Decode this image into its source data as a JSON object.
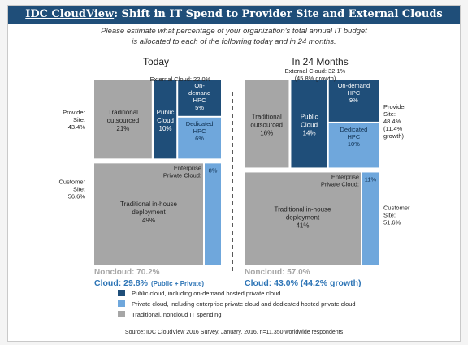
{
  "title": {
    "brand": "IDC CloudView",
    "rest": ": Shift in IT Spend to Provider Site and External Clouds"
  },
  "subtitle": [
    "Please estimate what percentage of your organization's total annual IT budget",
    "is allocated to each of the following today and in 24 months."
  ],
  "colors": {
    "title_bar": "#1f4e79",
    "public_cloud": "#1f4e79",
    "private_cloud": "#6fa7dc",
    "noncloud": "#a6a6a6"
  },
  "chart_data": [
    {
      "type": "mosaic",
      "title": "Today",
      "units": "% of IT budget",
      "provider_site": {
        "label": [
          "Provider",
          "Site:",
          "43.4%"
        ],
        "share": 43.4
      },
      "customer_site": {
        "label": [
          "Customer",
          "Site:",
          "56.6%"
        ],
        "share": 56.6
      },
      "external_cloud_label": [
        "External Cloud: 22.0%"
      ],
      "enterprise_private_label": [
        "Enterprise",
        "Private Cloud:"
      ],
      "segments": [
        {
          "site": "Provider",
          "category": "Traditional",
          "label": [
            "Traditional",
            "outsourced",
            "21%"
          ],
          "value": 21
        },
        {
          "site": "Provider",
          "category": "Public",
          "label": [
            "Public",
            "Cloud",
            "10%"
          ],
          "value": 10
        },
        {
          "site": "Provider",
          "category": "Public",
          "label": [
            "On-",
            "demand",
            "HPC",
            "5%"
          ],
          "value": 5
        },
        {
          "site": "Provider",
          "category": "Private",
          "label": [
            "Dedicated",
            "HPC",
            "6%"
          ],
          "value": 6
        },
        {
          "site": "Customer",
          "category": "Traditional",
          "label": [
            "Traditional in-house",
            "deployment",
            "49%"
          ],
          "value": 49
        },
        {
          "site": "Customer",
          "category": "Private",
          "label": [
            "8%"
          ],
          "value": 8
        }
      ],
      "summary": {
        "noncloud": "Noncloud: 70.2%",
        "cloud": "Cloud: 29.8%",
        "cloud_note": "(Public + Private)"
      }
    },
    {
      "type": "mosaic",
      "title": "In 24 Months",
      "units": "% of IT budget",
      "provider_site": {
        "label": [
          "Provider",
          "Site:",
          "48.4%",
          "(11.4%",
          "growth)"
        ],
        "share": 48.4
      },
      "customer_site": {
        "label": [
          "Customer",
          "Site:",
          "51.6%"
        ],
        "share": 51.6
      },
      "external_cloud_label": [
        "External Cloud: 32.1%",
        "(45.8% growth)"
      ],
      "enterprise_private_label": [
        "Enterprise",
        "Private Cloud:"
      ],
      "segments": [
        {
          "site": "Provider",
          "category": "Traditional",
          "label": [
            "Traditional",
            "outsourced",
            "16%"
          ],
          "value": 16
        },
        {
          "site": "Provider",
          "category": "Public",
          "label": [
            "Public",
            "Cloud",
            "14%"
          ],
          "value": 14
        },
        {
          "site": "Provider",
          "category": "Public",
          "label": [
            "On-demand",
            "HPC",
            "9%"
          ],
          "value": 9
        },
        {
          "site": "Provider",
          "category": "Private",
          "label": [
            "Dedicated",
            "HPC",
            "10%"
          ],
          "value": 10
        },
        {
          "site": "Customer",
          "category": "Traditional",
          "label": [
            "Traditional in-house",
            "deployment",
            "41%"
          ],
          "value": 41
        },
        {
          "site": "Customer",
          "category": "Private",
          "label": [
            "11%"
          ],
          "value": 11
        }
      ],
      "summary": {
        "noncloud": "Noncloud: 57.0%",
        "cloud": "Cloud: 43.0% (44.2% growth)"
      }
    }
  ],
  "legend": [
    {
      "label": "Public cloud, including on-demand hosted private cloud",
      "color": "#1f4e79"
    },
    {
      "label": "Private cloud, including enterprise private cloud and dedicated hosted private cloud",
      "color": "#6fa7dc"
    },
    {
      "label": "Traditional, noncloud IT spending",
      "color": "#a6a6a6"
    }
  ],
  "source": "Source: IDC CloudView 2016 Survey, January, 2016, n=11,350 worldwide respondents"
}
